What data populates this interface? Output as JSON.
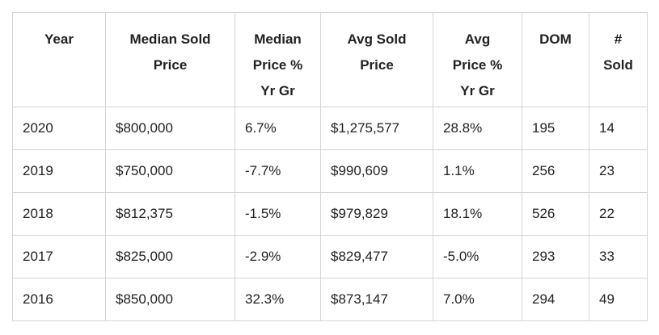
{
  "table": {
    "headers": [
      "Year",
      "Median Sold Price",
      "Median Price % Yr Gr",
      "Avg Sold Price",
      "Avg Price % Yr Gr",
      "DOM",
      "# Sold"
    ],
    "rows": [
      [
        "2020",
        "$800,000",
        "6.7%",
        "$1,275,577",
        "28.8%",
        "195",
        "14"
      ],
      [
        "2019",
        "$750,000",
        "-7.7%",
        "$990,609",
        "1.1%",
        "256",
        "23"
      ],
      [
        "2018",
        "$812,375",
        "-1.5%",
        "$979,829",
        "18.1%",
        "526",
        "22"
      ],
      [
        "2017",
        "$825,000",
        "-2.9%",
        "$829,477",
        "-5.0%",
        "293",
        "33"
      ],
      [
        "2016",
        "$850,000",
        "32.3%",
        "$873,147",
        "7.0%",
        "294",
        "49"
      ]
    ]
  }
}
